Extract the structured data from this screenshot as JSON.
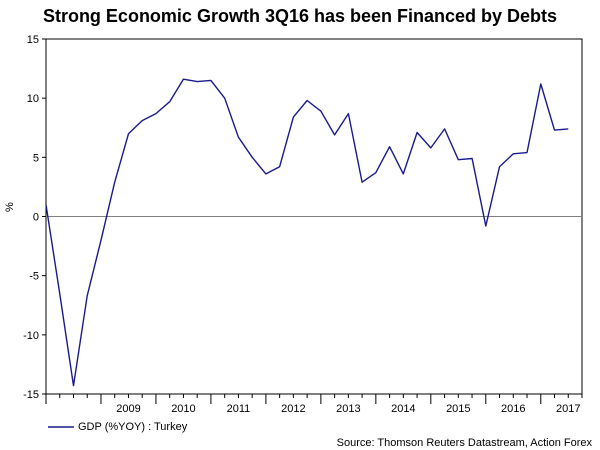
{
  "colors": {
    "series": "#1a1a8c",
    "zero_line": "#808080",
    "frame": "#000000",
    "text": "#000000"
  },
  "chart_data": {
    "type": "line",
    "title": "Strong Economic Growth 3Q16 has been Financed by Debts",
    "ylabel": "%",
    "xlabel": "",
    "ylim": [
      -15,
      15
    ],
    "yticks": [
      -15,
      -10,
      -5,
      0,
      5,
      10,
      15
    ],
    "xlim": [
      2008.0,
      2017.75
    ],
    "xtick_labels": [
      "2009",
      "2010",
      "2011",
      "2012",
      "2013",
      "2014",
      "2015",
      "2016",
      "2017"
    ],
    "grid": false,
    "legend": "bottom-left",
    "source": "Source: Thomson Reuters Datastream, Action Forex",
    "series": [
      {
        "name": "GDP (%YOY) : Turkey",
        "x": [
          2008.0,
          2008.25,
          2008.5,
          2008.75,
          2009.0,
          2009.25,
          2009.5,
          2009.75,
          2010.0,
          2010.25,
          2010.5,
          2010.75,
          2011.0,
          2011.25,
          2011.5,
          2011.75,
          2012.0,
          2012.25,
          2012.5,
          2012.75,
          2013.0,
          2013.25,
          2013.5,
          2013.75,
          2014.0,
          2014.25,
          2014.5,
          2014.75,
          2015.0,
          2015.25,
          2015.5,
          2015.75,
          2016.0,
          2016.25,
          2016.5,
          2016.75,
          2017.0,
          2017.25,
          2017.5
        ],
        "values": [
          1.0,
          -6.5,
          -14.3,
          -6.7,
          -2.0,
          2.9,
          7.0,
          8.1,
          8.7,
          9.7,
          11.6,
          11.4,
          11.5,
          10.0,
          6.7,
          5.0,
          3.6,
          4.2,
          8.4,
          9.8,
          8.9,
          6.9,
          8.7,
          2.9,
          3.7,
          5.9,
          3.6,
          7.1,
          5.8,
          7.4,
          4.8,
          4.9,
          -0.8,
          4.2,
          5.3,
          5.4,
          11.2,
          7.3,
          7.4
        ]
      }
    ]
  }
}
